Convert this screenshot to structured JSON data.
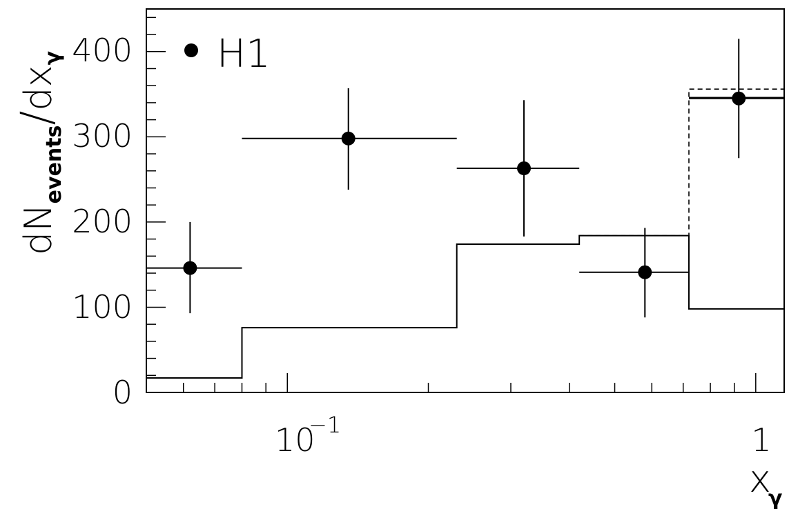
{
  "chart_data": {
    "type": "scatter",
    "x_scale": "log",
    "xlim": [
      0.05,
      1.15
    ],
    "ylim": [
      0,
      450
    ],
    "y_ticks": [
      "0",
      "100",
      "200",
      "300",
      "400"
    ],
    "x_ticks": [
      {
        "value": 0.1,
        "base": "10",
        "exp": "−1"
      },
      {
        "value": 1,
        "base": "1",
        "exp": ""
      }
    ],
    "xlabel": {
      "main": "x",
      "sub": "γ"
    },
    "ylabel": {
      "main": "dN",
      "sub1": "events",
      "slash": "/",
      "d": "dx",
      "sub2": "γ"
    },
    "legend": {
      "label": "H1",
      "position": "top-left"
    },
    "series": [
      {
        "name": "H1",
        "style": "points-with-errors",
        "points": [
          {
            "x": 0.062,
            "y": 146,
            "xlo": 0.05,
            "xhi": 0.08,
            "ylo": 93,
            "yhi": 200
          },
          {
            "x": 0.135,
            "y": 298,
            "xlo": 0.08,
            "xhi": 0.23,
            "ylo": 238,
            "yhi": 357
          },
          {
            "x": 0.32,
            "y": 263,
            "xlo": 0.23,
            "xhi": 0.42,
            "ylo": 183,
            "yhi": 343
          },
          {
            "x": 0.58,
            "y": 141,
            "xlo": 0.42,
            "xhi": 0.72,
            "ylo": 88,
            "yhi": 193
          },
          {
            "x": 0.92,
            "y": 345,
            "xlo": 0.72,
            "xhi": 1.15,
            "ylo": 275,
            "yhi": 415
          }
        ]
      },
      {
        "style": "histogram-solid",
        "bins": [
          {
            "x0": 0.05,
            "x1": 0.08,
            "y": 17
          },
          {
            "x0": 0.08,
            "x1": 0.23,
            "y": 76
          },
          {
            "x0": 0.23,
            "x1": 0.42,
            "y": 174
          },
          {
            "x0": 0.42,
            "x1": 0.72,
            "y": 184
          },
          {
            "x0": 0.72,
            "x1": 1.15,
            "y": 98
          }
        ]
      },
      {
        "style": "histogram-dashed",
        "bins": [
          {
            "x0": 0.42,
            "x1": 0.72,
            "y": 184
          },
          {
            "x0": 0.72,
            "x1": 1.15,
            "y": 356
          }
        ]
      },
      {
        "style": "histogram-solid",
        "bins": [
          {
            "x0": 0.72,
            "x1": 1.15,
            "y": 346
          }
        ]
      }
    ]
  }
}
